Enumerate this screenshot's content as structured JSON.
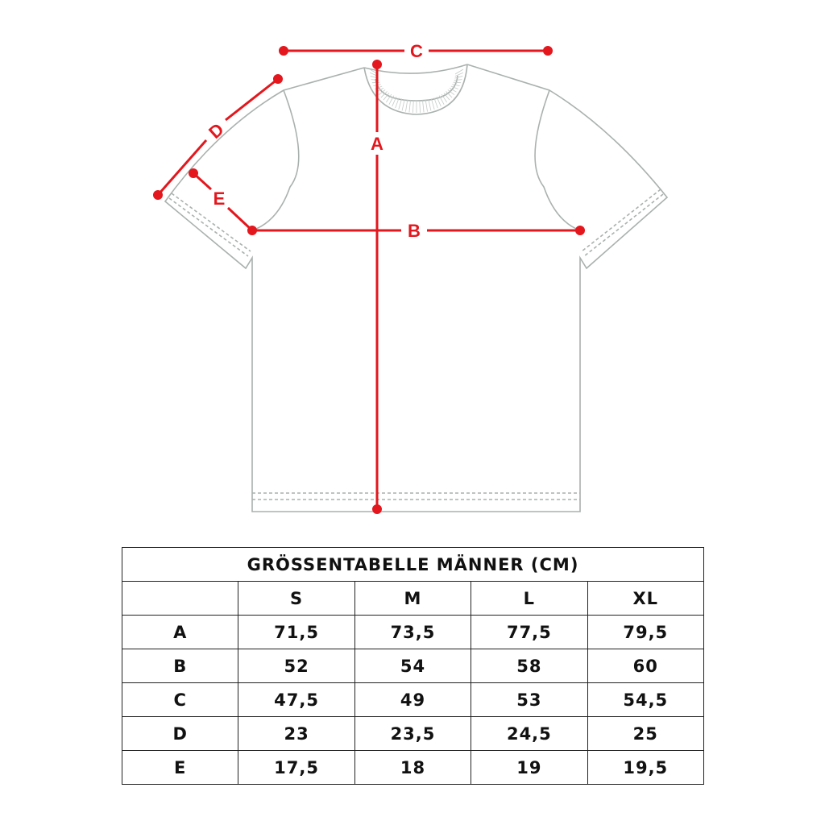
{
  "diagram": {
    "labels": {
      "A": "A",
      "B": "B",
      "C": "C",
      "D": "D",
      "E": "E"
    },
    "colors": {
      "measure": "#e3171d",
      "garment": "#a9b1ae"
    }
  },
  "table": {
    "title": "GRÖSSENTABELLE MÄNNER (CM)",
    "columns": [
      "",
      "S",
      "M",
      "L",
      "XL"
    ],
    "rows": [
      {
        "label": "A",
        "values": [
          "71,5",
          "73,5",
          "77,5",
          "79,5"
        ]
      },
      {
        "label": "B",
        "values": [
          "52",
          "54",
          "58",
          "60"
        ]
      },
      {
        "label": "C",
        "values": [
          "47,5",
          "49",
          "53",
          "54,5"
        ]
      },
      {
        "label": "D",
        "values": [
          "23",
          "23,5",
          "24,5",
          "25"
        ]
      },
      {
        "label": "E",
        "values": [
          "17,5",
          "18",
          "19",
          "19,5"
        ]
      }
    ]
  }
}
